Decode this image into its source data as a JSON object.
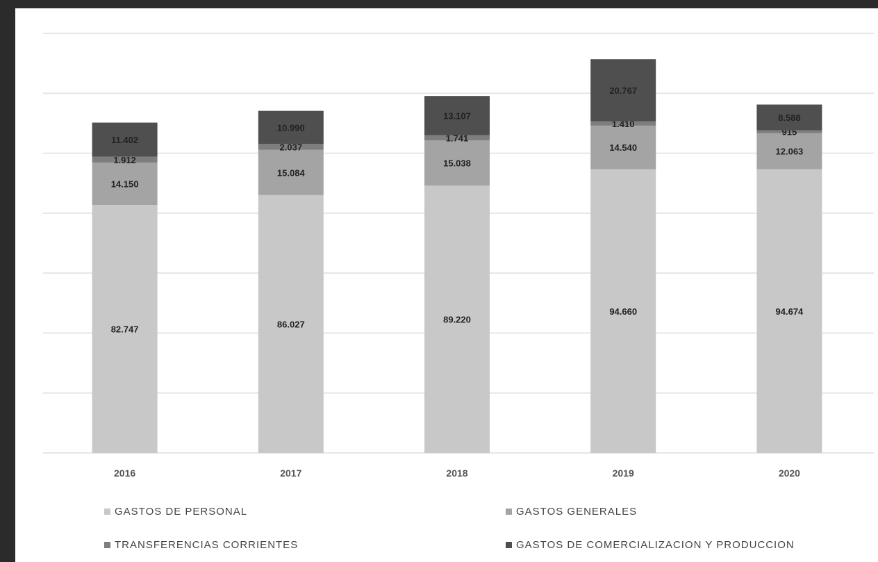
{
  "colors": {
    "background": "#ffffff",
    "frame": "#2b2b2b",
    "grid": "#e6e6e6",
    "label": "#222222",
    "tick": "#555555"
  },
  "chart_data": {
    "type": "bar",
    "stacked": true,
    "title": "",
    "xlabel": "",
    "ylabel": "",
    "ylim": [
      0,
      140000
    ],
    "grid": true,
    "legend_position": "bottom",
    "categories": [
      "2016",
      "2017",
      "2018",
      "2019",
      "2020"
    ],
    "series": [
      {
        "name": "GASTOS DE PERSONAL",
        "color": "#c8c8c8",
        "values": [
          82747,
          86027,
          89220,
          94660,
          94674
        ],
        "labels": [
          "82.747",
          "86.027",
          "89.220",
          "94.660",
          "94.674"
        ]
      },
      {
        "name": "GASTOS GENERALES",
        "color": "#a4a4a4",
        "values": [
          14150,
          15084,
          15038,
          14540,
          12063
        ],
        "labels": [
          "14.150",
          "15.084",
          "15.038",
          "14.540",
          "12.063"
        ]
      },
      {
        "name": "TRANSFERENCIAS CORRIENTES",
        "color": "#7e7e7e",
        "values": [
          1912,
          2037,
          1741,
          1410,
          915
        ],
        "labels": [
          "1.912",
          "2.037",
          "1.741",
          "1.410",
          "915"
        ]
      },
      {
        "name": "GASTOS DE COMERCIALIZACION Y PRODUCCION",
        "color": "#4f4f4f",
        "values": [
          11402,
          10990,
          13107,
          20767,
          8588
        ],
        "labels": [
          "11.402",
          "10.990",
          "13.107",
          "20.767",
          "8.588"
        ]
      }
    ]
  }
}
